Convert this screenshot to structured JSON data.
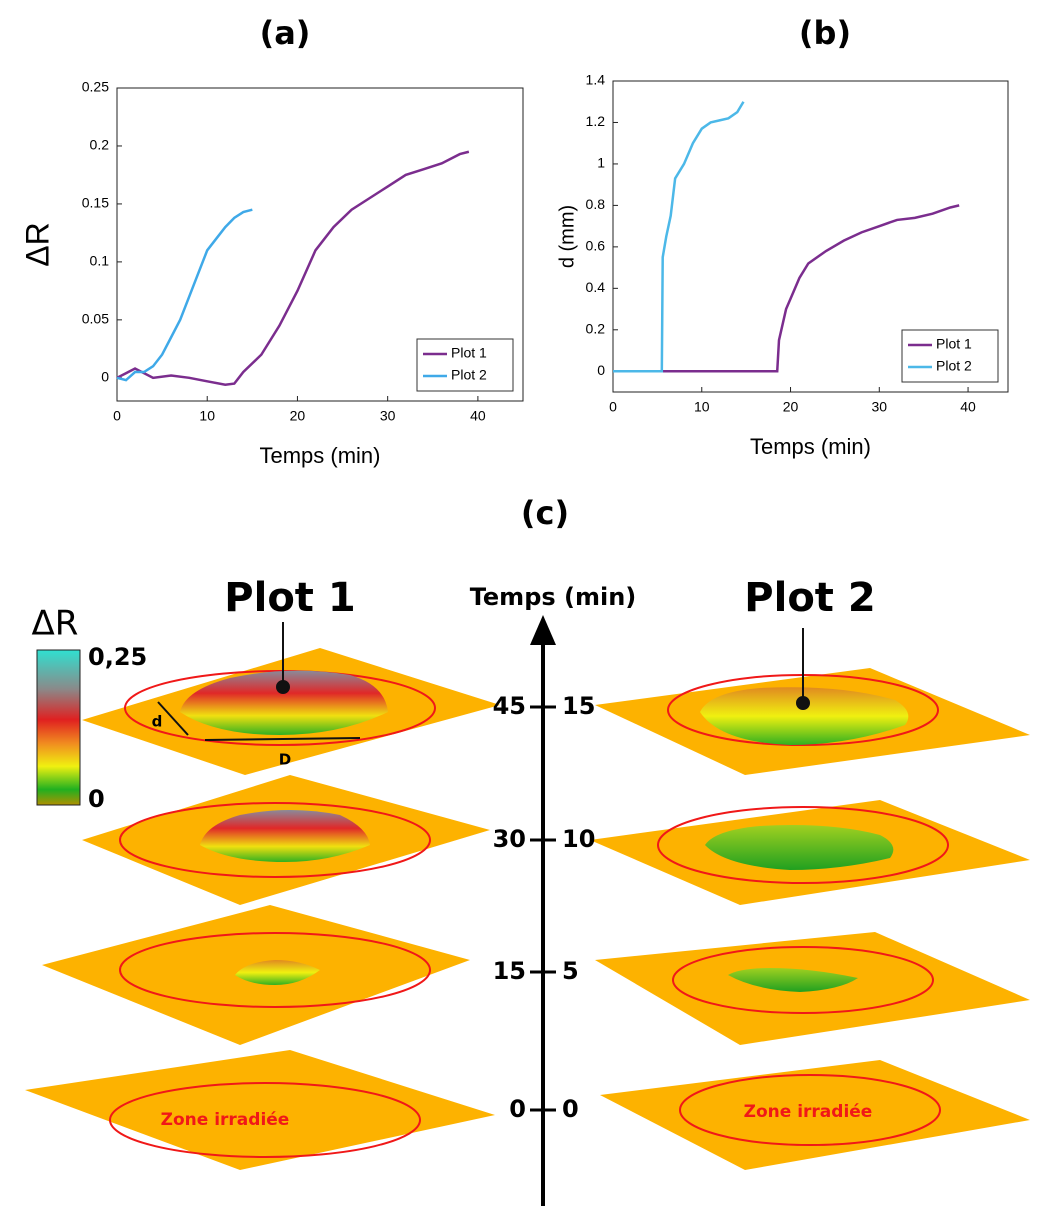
{
  "chart_data": [
    {
      "type": "line",
      "title": "(a)",
      "xlabel": "Temps (min)",
      "ylabel": "ΔR",
      "xlim": [
        0,
        45
      ],
      "ylim": [
        -0.02,
        0.25
      ],
      "xticks": [
        0,
        10,
        20,
        30,
        40
      ],
      "yticks": [
        0,
        0.05,
        0.1,
        0.15,
        0.2,
        0.25
      ],
      "legend": "lower right",
      "series": [
        {
          "name": "Plot 1",
          "color": "#7b2d8e",
          "x": [
            0,
            2,
            4,
            6,
            8,
            10,
            12,
            13,
            14,
            16,
            18,
            20,
            22,
            24,
            26,
            28,
            30,
            32,
            34,
            36,
            38,
            39
          ],
          "values": [
            0,
            0.008,
            0,
            0.002,
            0,
            -0.003,
            -0.006,
            -0.005,
            0.005,
            0.02,
            0.045,
            0.075,
            0.11,
            0.13,
            0.145,
            0.155,
            0.165,
            0.175,
            0.18,
            0.185,
            0.193,
            0.195
          ]
        },
        {
          "name": "Plot 2",
          "color": "#3fa9e8",
          "x": [
            0,
            1,
            2,
            3,
            4,
            5,
            6,
            7,
            8,
            9,
            10,
            11,
            12,
            13,
            14,
            15
          ],
          "values": [
            0,
            -0.002,
            0.005,
            0.005,
            0.01,
            0.02,
            0.035,
            0.05,
            0.07,
            0.09,
            0.11,
            0.12,
            0.13,
            0.138,
            0.143,
            0.145
          ]
        }
      ]
    },
    {
      "type": "line",
      "title": "(b)",
      "xlabel": "Temps (min)",
      "ylabel": "d (mm)",
      "xlim": [
        0,
        44.5
      ],
      "ylim": [
        -0.1,
        1.4
      ],
      "xticks": [
        0,
        10,
        20,
        30,
        40
      ],
      "yticks": [
        0,
        0.2,
        0.4,
        0.6,
        0.8,
        1,
        1.2,
        1.4
      ],
      "legend": "lower right",
      "series": [
        {
          "name": "Plot 1",
          "color": "#7b2d8e",
          "x": [
            0,
            18.5,
            18.7,
            19.5,
            20,
            21,
            22,
            24,
            26,
            28,
            30,
            32,
            34,
            36,
            38,
            39
          ],
          "values": [
            0,
            0,
            0.15,
            0.3,
            0.35,
            0.45,
            0.52,
            0.58,
            0.63,
            0.67,
            0.7,
            0.73,
            0.74,
            0.76,
            0.79,
            0.8
          ]
        },
        {
          "name": "Plot 2",
          "color": "#4cb8e8",
          "x": [
            0,
            5.5,
            5.6,
            6,
            6.5,
            7,
            8,
            9,
            10,
            11,
            12,
            13,
            14,
            14.7
          ],
          "values": [
            0,
            0,
            0.55,
            0.65,
            0.75,
            0.93,
            1.0,
            1.1,
            1.17,
            1.2,
            1.21,
            1.22,
            1.25,
            1.3
          ]
        }
      ]
    }
  ],
  "panel_c": {
    "title": "(c)",
    "left_title": "Plot 1",
    "right_title": "Plot 2",
    "axis_label": "Temps (min)",
    "colorbar": {
      "label": "ΔR",
      "max_label": "0,25",
      "min_label": "0"
    },
    "left_times": [
      45,
      30,
      15,
      0
    ],
    "right_times": [
      15,
      10,
      5,
      0
    ],
    "zone_label_left": "Zone irradiée",
    "zone_label_right": "Zone irradiée",
    "d_label": "d",
    "D_label": "D"
  }
}
